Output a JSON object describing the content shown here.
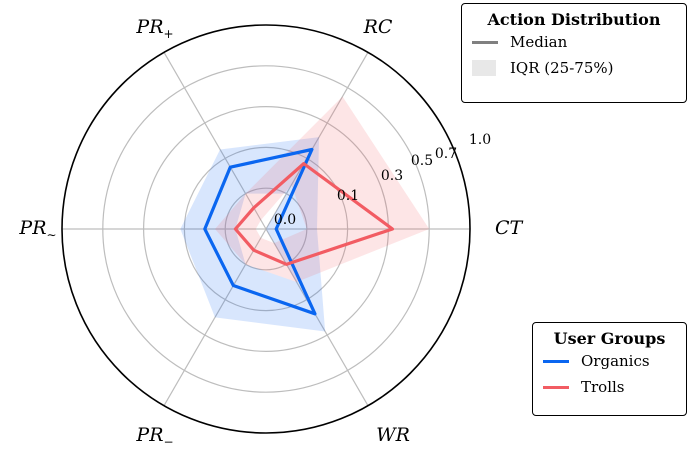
{
  "chart_data": {
    "type": "radar",
    "axes": [
      {
        "key": "CT",
        "label": "CT"
      },
      {
        "key": "RC",
        "label": "RC"
      },
      {
        "key": "PR_plus",
        "label": "PR",
        "sub": "+"
      },
      {
        "key": "PR_tilde",
        "label": "PR",
        "sub": "∼"
      },
      {
        "key": "PR_minus",
        "label": "PR",
        "sub": "−"
      },
      {
        "key": "WR",
        "label": "WR"
      }
    ],
    "radial_ticks": [
      "0.0",
      "0.1",
      "0.3",
      "0.5",
      "0.7",
      "1.0"
    ],
    "series": [
      {
        "name": "Organics",
        "color": "#0a66f0",
        "median": [
          0.05,
          0.45,
          0.35,
          0.3,
          0.32,
          0.48
        ],
        "iqr_low": [
          0.0,
          0.2,
          0.2,
          0.15,
          0.2,
          0.3
        ],
        "iqr_high": [
          0.25,
          0.52,
          0.45,
          0.42,
          0.5,
          0.58
        ]
      },
      {
        "name": "Trolls",
        "color": "#f25c63",
        "median": [
          0.62,
          0.37,
          0.12,
          0.15,
          0.12,
          0.2
        ],
        "iqr_low": [
          0.2,
          0.25,
          0.05,
          0.05,
          0.05,
          0.08
        ],
        "iqr_high": [
          0.8,
          0.75,
          0.2,
          0.25,
          0.2,
          0.3
        ]
      }
    ],
    "legends": [
      {
        "title": "Action Distribution",
        "items": [
          {
            "label": "Median",
            "kind": "line",
            "color": "#808080"
          },
          {
            "label": "IQR (25-75%)",
            "kind": "box",
            "color": "#e8e8e8"
          }
        ]
      },
      {
        "title": "User Groups",
        "items": [
          {
            "label": "Organics",
            "kind": "line",
            "color": "#0a66f0"
          },
          {
            "label": "Trolls",
            "kind": "line",
            "color": "#f25c63"
          }
        ]
      }
    ]
  }
}
